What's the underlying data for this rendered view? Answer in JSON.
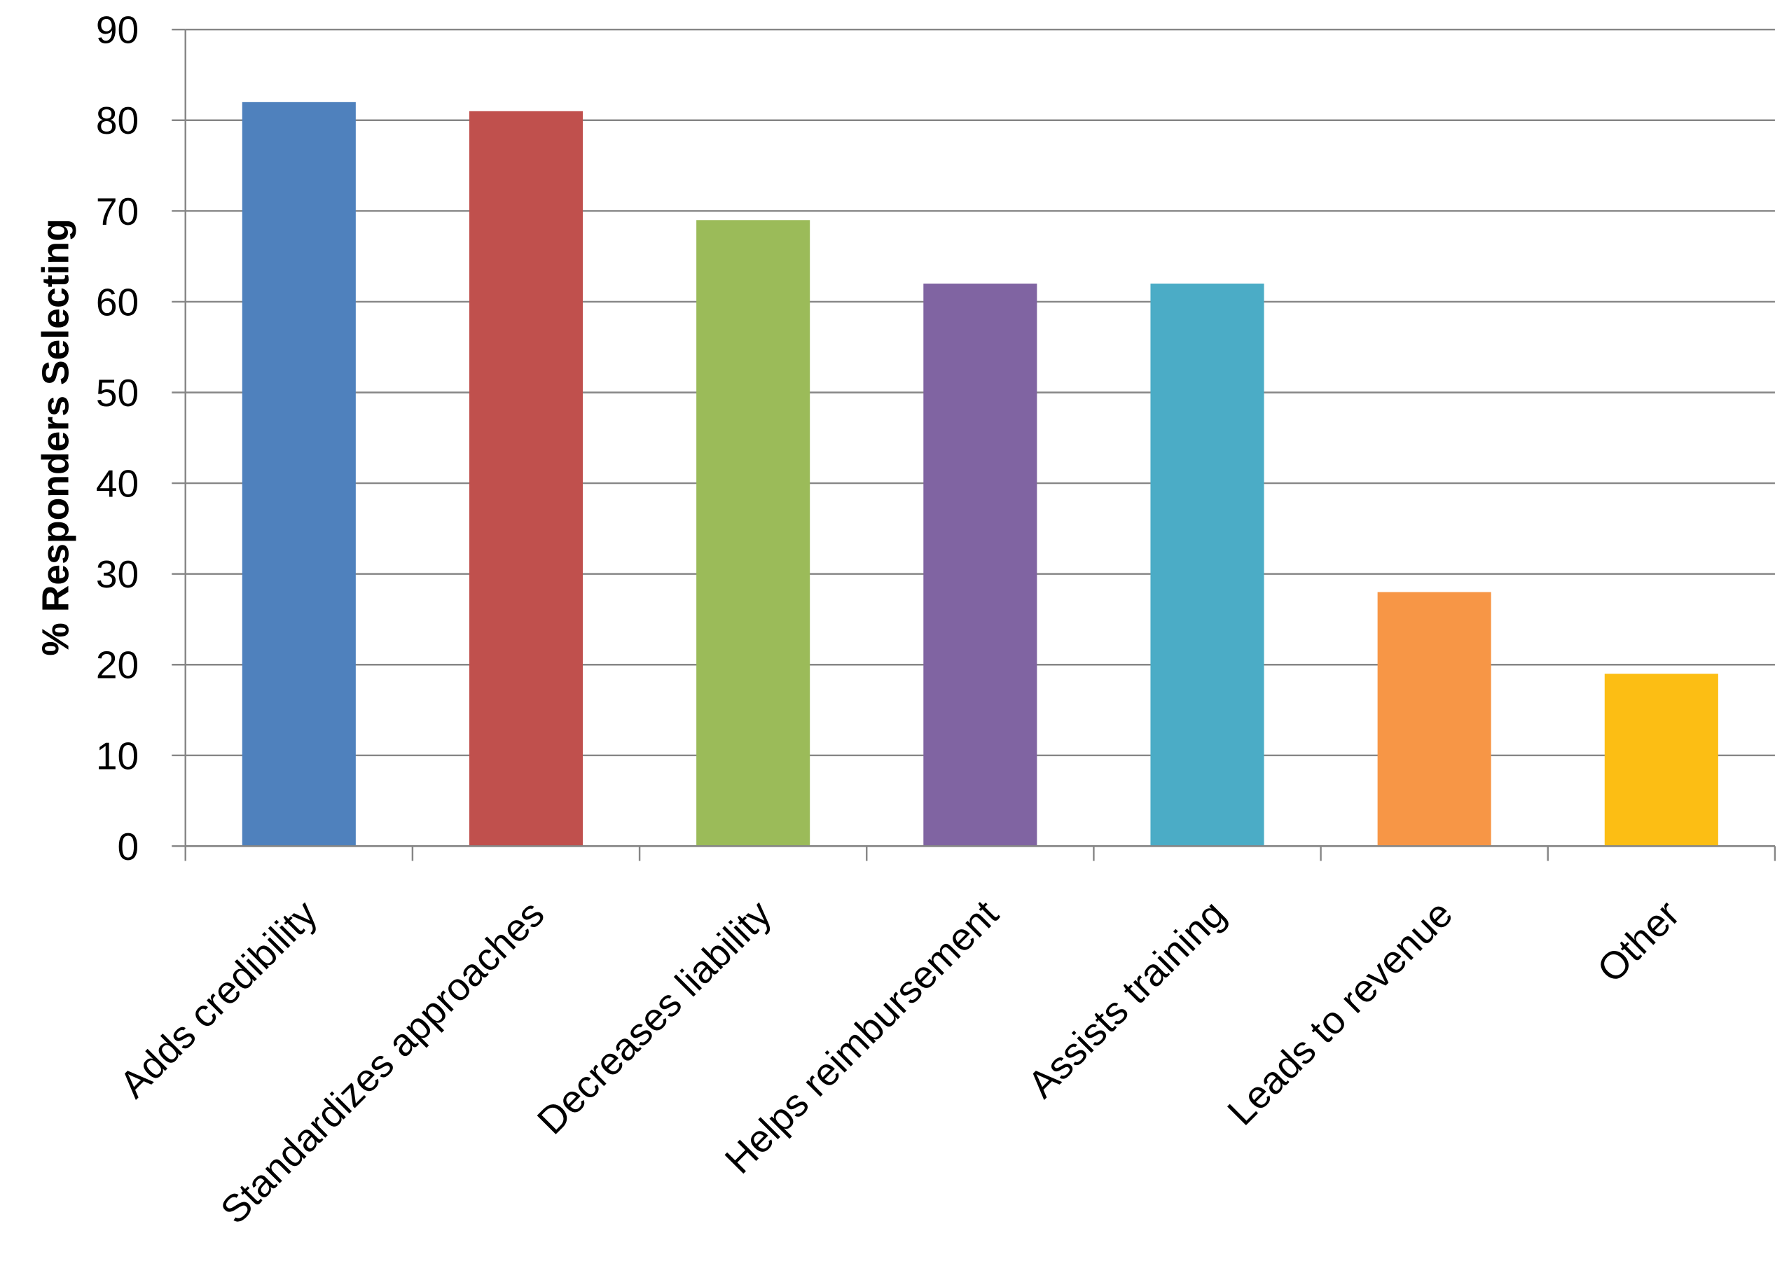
{
  "chart_data": {
    "type": "bar",
    "y_label": "% Responders Selecting",
    "categories": [
      "Adds credibility",
      "Standardizes approaches",
      "Decreases liability",
      "Helps reimbursement",
      "Assists training",
      "Leads to revenue",
      "Other"
    ],
    "values": [
      82,
      81,
      69,
      62,
      62,
      28,
      19
    ],
    "colors": [
      "#4f81bd",
      "#c0504d",
      "#9bbb59",
      "#8064a2",
      "#4bacc6",
      "#f79646",
      "#fcbe14"
    ],
    "ylim": [
      0,
      90
    ],
    "yticks": [
      0,
      10,
      20,
      30,
      40,
      50,
      60,
      70,
      80,
      90
    ],
    "grid": true
  }
}
